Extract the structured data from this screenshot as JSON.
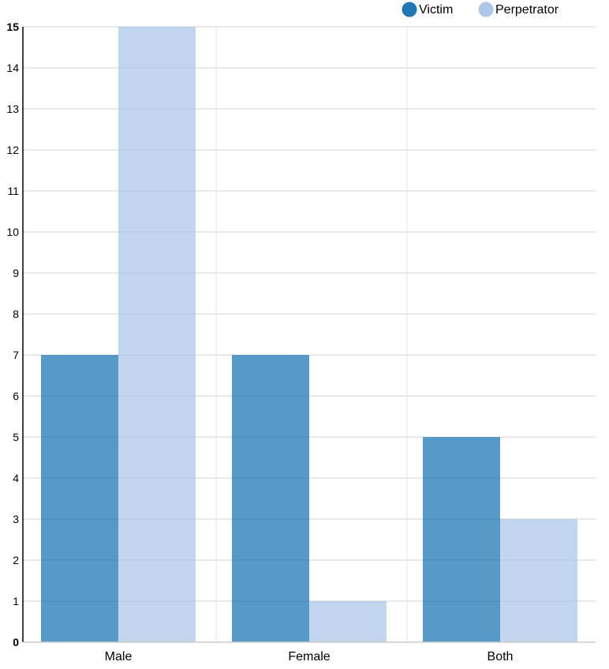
{
  "chart_data": {
    "type": "bar",
    "categories": [
      "Male",
      "Female",
      "Both"
    ],
    "series": [
      {
        "name": "Victim",
        "values": [
          7,
          7,
          5
        ],
        "color": "#1f77b4"
      },
      {
        "name": "Perpetrator",
        "values": [
          15,
          1,
          3
        ],
        "color": "#aec7e8"
      }
    ],
    "ylim": [
      0,
      15
    ],
    "yticks": [
      0,
      1,
      2,
      3,
      4,
      5,
      6,
      7,
      8,
      9,
      10,
      11,
      12,
      13,
      14,
      15
    ],
    "grid": true,
    "legend_position": "top-right",
    "bar_opacity": 0.75
  }
}
